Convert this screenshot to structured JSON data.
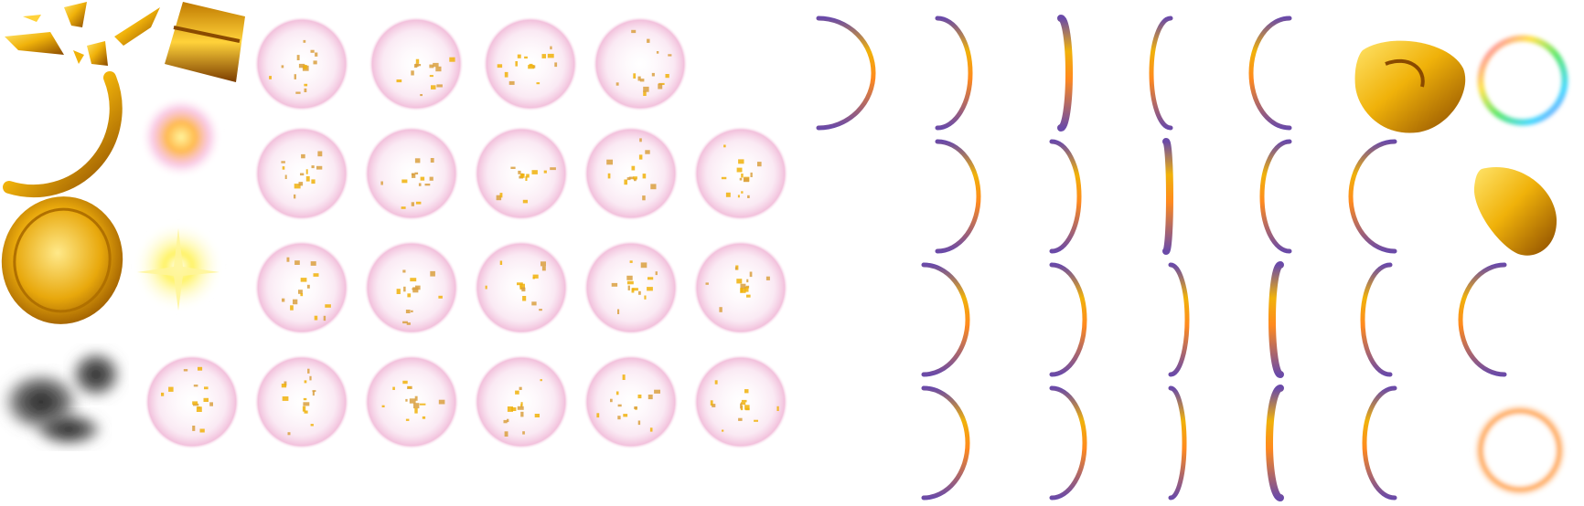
{
  "colors": {
    "background": "#ffffff",
    "gold_light": "#ffe46a",
    "gold_mid": "#f0b20a",
    "gold_dark": "#8a4a00",
    "orange": "#ff8a1e",
    "pink_glow": "#f4b7d9",
    "purple_edge": "#6a4aa8",
    "smoke": "#1a1a1a"
  },
  "sprites": {
    "shards": "gold-shard-burst",
    "block": "gold-block-fragment",
    "big_arc": "gold-ring-arc",
    "flare": "pink-gold-flare",
    "coin": "gold-coin",
    "sparkle": "yellow-sparkle",
    "smoke": "black-smoke-puff",
    "bubble": "glitter-bubble",
    "ring_arc": "ring-spin-frame",
    "nugget": "gold-nugget",
    "rainbow_ring": "rainbow-glow-ring",
    "orange_ring": "orange-glow-ring",
    "gold_chunk": "gold-chunk"
  }
}
